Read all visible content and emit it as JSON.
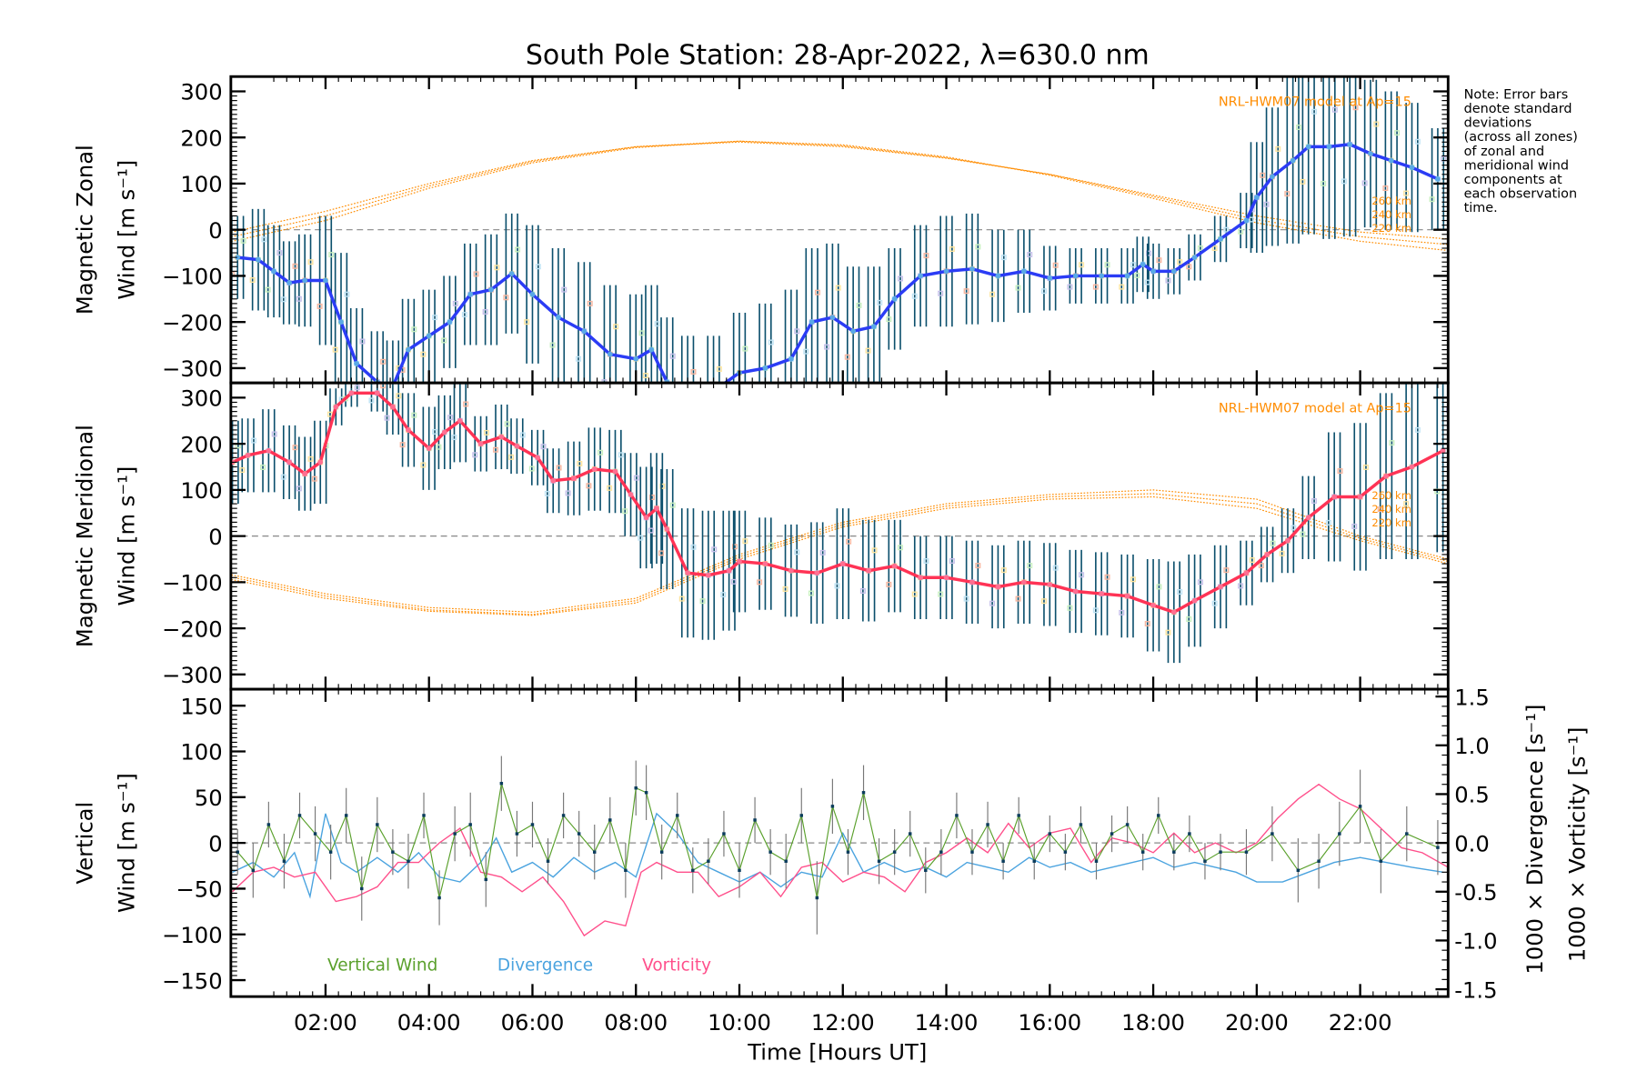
{
  "chart_data": [
    {
      "type": "line",
      "id": "zonal",
      "title": "South Pole Station: 28-Apr-2022, λ=630.0 nm",
      "ylabel_lines": [
        "Magnetic Zonal",
        "Wind [m s⁻¹]"
      ],
      "ylim": [
        -332,
        332
      ],
      "yticks": [
        300,
        200,
        100,
        0,
        -100,
        -200,
        -300
      ],
      "model_label": "NRL-HWM07 model at Ap=15",
      "model_altitudes": [
        "260 km",
        "240 km",
        "220 km"
      ],
      "line_color": "#2b3cf5",
      "x": [
        0.3,
        0.7,
        1.0,
        1.3,
        1.6,
        2.0,
        2.3,
        2.6,
        3.0,
        3.3,
        3.6,
        4.0,
        4.4,
        4.8,
        5.2,
        5.6,
        6.0,
        6.5,
        7.0,
        7.5,
        8.0,
        8.3,
        8.6,
        9.0,
        9.5,
        10.0,
        10.5,
        11.0,
        11.4,
        11.8,
        12.2,
        12.6,
        13.0,
        13.5,
        14.0,
        14.5,
        15.0,
        15.5,
        16.0,
        16.5,
        17.0,
        17.5,
        17.8,
        18.0,
        18.4,
        18.8,
        19.3,
        19.8,
        20.0,
        20.3,
        20.7,
        21.0,
        21.4,
        21.8,
        22.2,
        22.6,
        23.0,
        23.5
      ],
      "y": [
        -60,
        -65,
        -90,
        -115,
        -110,
        -110,
        -200,
        -290,
        -330,
        -340,
        -260,
        -230,
        -200,
        -140,
        -130,
        -95,
        -140,
        -190,
        -220,
        -270,
        -280,
        -260,
        -330,
        -360,
        -350,
        -310,
        -300,
        -280,
        -200,
        -190,
        -220,
        -210,
        -150,
        -100,
        -90,
        -85,
        -100,
        -90,
        -105,
        -100,
        -100,
        -100,
        -75,
        -90,
        -90,
        -60,
        -20,
        20,
        70,
        115,
        150,
        180,
        180,
        185,
        165,
        150,
        135,
        110
      ],
      "error": [
        90,
        110,
        100,
        90,
        100,
        140,
        150,
        120,
        110,
        100,
        110,
        100,
        100,
        110,
        120,
        130,
        150,
        150,
        150,
        150,
        140,
        140,
        140,
        130,
        120,
        130,
        140,
        150,
        160,
        160,
        140,
        130,
        110,
        110,
        120,
        120,
        100,
        90,
        70,
        60,
        60,
        60,
        60,
        60,
        50,
        50,
        50,
        60,
        120,
        150,
        180,
        190,
        200,
        200,
        160,
        150,
        140,
        110
      ],
      "model": {
        "x": [
          0,
          2,
          4,
          6,
          8,
          10,
          12,
          14,
          16,
          18,
          20,
          22,
          23.7
        ],
        "series": [
          {
            "name": "260 km",
            "y": [
              -10,
              40,
              100,
              150,
              180,
              190,
              180,
              155,
              120,
              75,
              30,
              -5,
              -20
            ]
          },
          {
            "name": "240 km",
            "y": [
              -20,
              30,
              95,
              148,
              180,
              192,
              182,
              156,
              120,
              72,
              22,
              -15,
              -32
            ]
          },
          {
            "name": "220 km",
            "y": [
              -30,
              20,
              90,
              145,
              178,
              192,
              184,
              158,
              118,
              68,
              15,
              -25,
              -45
            ]
          }
        ]
      }
    },
    {
      "type": "line",
      "id": "meridional",
      "ylabel_lines": [
        "Magnetic Meridional",
        "Wind [m s⁻¹]"
      ],
      "ylim": [
        -332,
        332
      ],
      "yticks": [
        300,
        200,
        100,
        0,
        -100,
        -200,
        -300
      ],
      "model_label": "NRL-HWM07 model at Ap=15",
      "model_altitudes": [
        "260 km",
        "240 km",
        "220 km"
      ],
      "line_color": "#ff3355",
      "x": [
        0.2,
        0.5,
        0.9,
        1.3,
        1.6,
        1.9,
        2.2,
        2.5,
        3.0,
        3.3,
        3.6,
        4.0,
        4.3,
        4.6,
        5.0,
        5.4,
        5.7,
        6.1,
        6.4,
        6.8,
        7.2,
        7.6,
        7.9,
        8.2,
        8.4,
        8.6,
        9.0,
        9.4,
        9.8,
        10.0,
        10.5,
        11.0,
        11.5,
        12.0,
        12.5,
        13.0,
        13.5,
        14.0,
        14.5,
        15.0,
        15.5,
        16.0,
        16.5,
        17.0,
        17.5,
        18.0,
        18.4,
        18.8,
        19.3,
        19.8,
        20.2,
        20.6,
        21.0,
        21.5,
        22.0,
        22.5,
        23.0,
        23.6
      ],
      "y": [
        160,
        175,
        185,
        160,
        135,
        160,
        280,
        310,
        310,
        280,
        230,
        190,
        225,
        250,
        200,
        215,
        195,
        170,
        120,
        125,
        145,
        140,
        90,
        40,
        60,
        15,
        -80,
        -85,
        -75,
        -55,
        -60,
        -75,
        -80,
        -60,
        -75,
        -65,
        -90,
        -90,
        -100,
        -110,
        -100,
        -105,
        -120,
        -125,
        -130,
        -150,
        -165,
        -140,
        -110,
        -80,
        -40,
        -10,
        40,
        85,
        85,
        130,
        150,
        185
      ],
      "error": [
        90,
        80,
        90,
        80,
        80,
        90,
        40,
        30,
        40,
        60,
        80,
        90,
        80,
        90,
        60,
        70,
        60,
        60,
        70,
        80,
        90,
        90,
        90,
        110,
        120,
        130,
        140,
        140,
        130,
        110,
        100,
        100,
        110,
        120,
        110,
        100,
        90,
        90,
        90,
        90,
        90,
        90,
        90,
        90,
        90,
        100,
        110,
        100,
        90,
        70,
        60,
        70,
        90,
        140,
        160,
        180,
        200,
        220
      ],
      "model": {
        "x": [
          0,
          2,
          4,
          6,
          8,
          10,
          12,
          14,
          16,
          18,
          20,
          22,
          23.7
        ],
        "series": [
          {
            "name": "260 km",
            "y": [
              -80,
              -125,
              -155,
              -165,
              -135,
              -40,
              30,
              70,
              90,
              100,
              80,
              0,
              -50
            ]
          },
          {
            "name": "240 km",
            "y": [
              -85,
              -130,
              -160,
              -170,
              -140,
              -45,
              25,
              65,
              85,
              92,
              70,
              -5,
              -55
            ]
          },
          {
            "name": "220 km",
            "y": [
              -90,
              -135,
              -163,
              -172,
              -145,
              -50,
              20,
              60,
              80,
              85,
              60,
              -10,
              -60
            ]
          }
        ]
      }
    },
    {
      "type": "line",
      "id": "vertical",
      "ylabel_lines": [
        "Vertical",
        "Wind [m s⁻¹]"
      ],
      "ylim": [
        -168,
        168
      ],
      "yticks": [
        150,
        100,
        50,
        0,
        -50,
        -100,
        -150
      ],
      "y2label_lines": [
        "1000 × Divergence [s⁻¹]",
        "1000 × Vorticity [s⁻¹]"
      ],
      "y2lim": [
        -1.575,
        1.575
      ],
      "y2ticks": [
        "1.5",
        "1.0",
        "0.5",
        "0.0",
        "-0.5",
        "-1.0",
        "-1.5"
      ],
      "y2tick_values": [
        1.5,
        1.0,
        0.5,
        0.0,
        -0.5,
        -1.0,
        -1.5
      ],
      "xlabel": "Time [Hours UT]",
      "xticks": [
        "02:00",
        "04:00",
        "06:00",
        "08:00",
        "10:00",
        "12:00",
        "14:00",
        "16:00",
        "18:00",
        "20:00",
        "22:00"
      ],
      "xtick_values": [
        2,
        4,
        6,
        8,
        10,
        12,
        14,
        16,
        18,
        20,
        22
      ],
      "xlim": [
        0.17,
        23.7
      ],
      "legend": [
        "Vertical Wind",
        "Divergence",
        "Vorticity"
      ],
      "colors": {
        "vertical": "#5aa02c",
        "divergence": "#4aa3df",
        "vorticity": "#ff4f8b"
      },
      "vertical_wind": {
        "x": [
          0.3,
          0.6,
          0.9,
          1.2,
          1.5,
          1.8,
          2.1,
          2.4,
          2.7,
          3.0,
          3.3,
          3.6,
          3.9,
          4.2,
          4.5,
          4.8,
          5.1,
          5.4,
          5.7,
          6.0,
          6.3,
          6.6,
          6.9,
          7.2,
          7.5,
          7.8,
          8.0,
          8.2,
          8.5,
          8.8,
          9.1,
          9.4,
          9.7,
          10.0,
          10.3,
          10.6,
          10.9,
          11.2,
          11.5,
          11.8,
          12.1,
          12.4,
          12.7,
          13.0,
          13.3,
          13.6,
          13.9,
          14.2,
          14.5,
          14.8,
          15.1,
          15.4,
          15.7,
          16.0,
          16.3,
          16.6,
          16.9,
          17.2,
          17.5,
          17.8,
          18.1,
          18.4,
          18.7,
          19.0,
          19.3,
          19.8,
          20.3,
          20.8,
          21.2,
          21.6,
          22.0,
          22.4,
          22.9,
          23.5
        ],
        "y": [
          -10,
          -30,
          20,
          -20,
          30,
          10,
          -10,
          30,
          -50,
          20,
          -10,
          -20,
          30,
          -60,
          10,
          20,
          -40,
          65,
          10,
          20,
          -20,
          30,
          10,
          -10,
          25,
          -30,
          60,
          55,
          -10,
          30,
          -30,
          -20,
          10,
          -30,
          25,
          -10,
          -20,
          30,
          -60,
          40,
          -10,
          55,
          -20,
          -10,
          10,
          -30,
          -10,
          30,
          -10,
          20,
          -20,
          30,
          -20,
          10,
          -10,
          20,
          -20,
          10,
          20,
          -10,
          30,
          -10,
          10,
          -20,
          -10,
          -10,
          10,
          -30,
          -20,
          10,
          40,
          -20,
          10,
          -5
        ],
        "error": [
          25,
          30,
          25,
          30,
          25,
          30,
          30,
          30,
          35,
          30,
          25,
          30,
          25,
          30,
          30,
          35,
          30,
          30,
          25,
          25,
          25,
          25,
          25,
          30,
          25,
          30,
          30,
          30,
          30,
          25,
          25,
          25,
          25,
          30,
          25,
          25,
          30,
          30,
          40,
          30,
          25,
          30,
          25,
          25,
          25,
          25,
          25,
          25,
          25,
          25,
          20,
          20,
          20,
          20,
          20,
          20,
          20,
          20,
          20,
          20,
          20,
          20,
          20,
          20,
          20,
          25,
          30,
          35,
          30,
          35,
          40,
          35,
          30,
          30
        ]
      },
      "divergence": {
        "x": [
          0.2,
          0.6,
          1.0,
          1.4,
          1.7,
          2.0,
          2.3,
          2.6,
          3.0,
          3.4,
          3.8,
          4.2,
          4.6,
          5.0,
          5.3,
          5.6,
          6.0,
          6.4,
          6.8,
          7.2,
          7.6,
          8.0,
          8.4,
          8.8,
          9.2,
          9.6,
          10.0,
          10.4,
          10.8,
          11.2,
          11.6,
          12.0,
          12.4,
          12.8,
          13.2,
          13.6,
          14.0,
          14.4,
          14.8,
          15.2,
          15.6,
          16.0,
          16.4,
          16.8,
          17.2,
          17.6,
          18.0,
          18.4,
          18.8,
          19.2,
          19.6,
          20.0,
          20.5,
          21.0,
          21.5,
          22.0,
          22.5,
          23.0,
          23.6
        ],
        "y": [
          -0.3,
          -0.2,
          -0.35,
          -0.1,
          -0.55,
          0.3,
          -0.2,
          -0.3,
          -0.15,
          -0.3,
          -0.1,
          -0.35,
          -0.4,
          -0.2,
          0.05,
          -0.3,
          -0.2,
          -0.35,
          -0.15,
          -0.3,
          -0.2,
          -0.35,
          0.3,
          0.1,
          -0.2,
          -0.3,
          -0.4,
          -0.3,
          -0.45,
          -0.3,
          -0.35,
          0.1,
          -0.3,
          -0.2,
          -0.3,
          -0.25,
          -0.35,
          -0.2,
          -0.25,
          -0.3,
          -0.15,
          -0.25,
          -0.2,
          -0.3,
          -0.25,
          -0.2,
          -0.15,
          -0.25,
          -0.2,
          -0.25,
          -0.3,
          -0.4,
          -0.4,
          -0.3,
          -0.2,
          -0.15,
          -0.2,
          -0.25,
          -0.3
        ],
        "note": "approximate"
      },
      "vorticity": {
        "x": [
          0.2,
          0.6,
          1.0,
          1.4,
          1.8,
          2.2,
          2.6,
          3.0,
          3.4,
          3.8,
          4.2,
          4.6,
          5.0,
          5.4,
          5.8,
          6.2,
          6.6,
          7.0,
          7.4,
          7.8,
          8.1,
          8.4,
          8.8,
          9.2,
          9.6,
          10.0,
          10.4,
          10.8,
          11.2,
          11.6,
          12.0,
          12.4,
          12.8,
          13.2,
          13.6,
          14.0,
          14.4,
          14.8,
          15.2,
          15.6,
          16.0,
          16.4,
          16.8,
          17.2,
          17.6,
          18.0,
          18.4,
          18.8,
          19.2,
          19.6,
          20.0,
          20.4,
          20.8,
          21.2,
          21.6,
          22.0,
          22.4,
          22.8,
          23.2,
          23.7
        ],
        "y": [
          -0.5,
          -0.3,
          -0.25,
          -0.35,
          -0.3,
          -0.6,
          -0.55,
          -0.45,
          -0.2,
          -0.2,
          0.0,
          0.15,
          -0.3,
          -0.35,
          -0.5,
          -0.35,
          -0.6,
          -0.95,
          -0.8,
          -0.85,
          -0.3,
          -0.2,
          -0.3,
          -0.3,
          -0.55,
          -0.45,
          -0.3,
          -0.55,
          -0.25,
          -0.2,
          -0.4,
          -0.3,
          -0.35,
          -0.5,
          -0.2,
          -0.1,
          0.05,
          -0.1,
          0.2,
          -0.05,
          0.1,
          0.15,
          -0.2,
          0.05,
          0.0,
          -0.1,
          0.1,
          -0.1,
          0.0,
          -0.1,
          0.0,
          0.25,
          0.45,
          0.6,
          0.45,
          0.35,
          0.15,
          -0.05,
          -0.1,
          -0.25
        ]
      }
    }
  ],
  "note": [
    "Note: Error bars",
    "denote standard",
    "deviations",
    "(across all zones)",
    "of zonal and",
    "meridional wind",
    "components at",
    "each observation",
    "time."
  ]
}
